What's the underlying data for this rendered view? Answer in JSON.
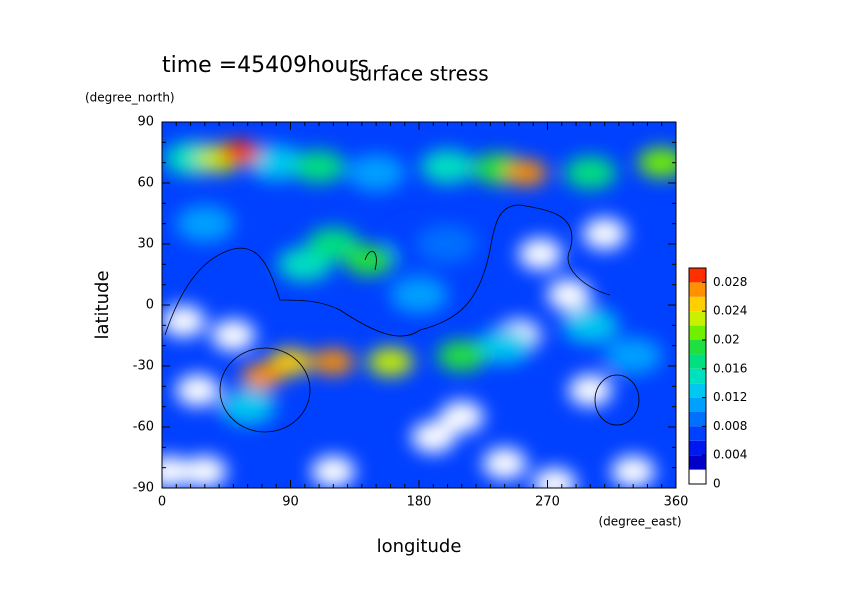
{
  "chart_data": {
    "type": "contour",
    "title": "surface stress",
    "subtitle": "time =45409hours",
    "x_label": "longitude",
    "x_unit": "(degree_east)",
    "y_label": "latitude",
    "y_unit": "(degree_north)",
    "xlim": [
      0,
      360
    ],
    "xticks": [
      0,
      90,
      180,
      270,
      360
    ],
    "ylim": [
      -90,
      90
    ],
    "yticks": [
      -90,
      -60,
      -30,
      0,
      30,
      60,
      90
    ],
    "levels": [
      0,
      0.002,
      0.004,
      0.006,
      0.008,
      0.01,
      0.012,
      0.014,
      0.016,
      0.018,
      0.02,
      0.022,
      0.024,
      0.026,
      0.028,
      0.03
    ],
    "colors": [
      "#ffffff",
      "#0000c8",
      "#0018f0",
      "#0040ff",
      "#0070ff",
      "#00a0ff",
      "#00c8f0",
      "#00e0c0",
      "#00e080",
      "#20e040",
      "#70f000",
      "#c8f000",
      "#ffd000",
      "#ff9000",
      "#ff3000"
    ],
    "colorbar_ticks": [
      0,
      0.004,
      0.008,
      0.012,
      0.016,
      0.02,
      0.024,
      0.028
    ],
    "points": {
      "x": [
        265,
        285,
        310,
        250,
        300,
        15,
        50,
        25,
        210,
        190,
        30,
        120,
        240,
        330,
        5,
        275,
        180,
        200,
        30,
        150,
        330,
        300,
        180,
        240,
        60,
        100,
        20,
        80,
        200,
        120,
        235,
        210,
        300,
        145,
        110,
        160,
        40,
        90,
        350,
        70,
        120,
        255,
        55
      ],
      "y": [
        25,
        5,
        35,
        -15,
        -42,
        -8,
        -15,
        -42,
        -55,
        -65,
        -82,
        -82,
        -78,
        -82,
        -82,
        -88,
        30,
        30,
        40,
        65,
        -25,
        -10,
        5,
        -20,
        -50,
        20,
        72,
        70,
        68,
        30,
        67,
        -25,
        65,
        22,
        68,
        -28,
        72,
        -28,
        70,
        -35,
        -28,
        65,
        75
      ],
      "values": [
        0,
        0,
        0,
        0,
        0,
        0,
        0,
        0,
        0,
        0,
        0,
        0,
        0,
        0,
        0,
        0,
        0.006,
        0.008,
        0.01,
        0.01,
        0.01,
        0.012,
        0.01,
        0.012,
        0.012,
        0.014,
        0.014,
        0.012,
        0.014,
        0.016,
        0.018,
        0.018,
        0.016,
        0.018,
        0.016,
        0.022,
        0.022,
        0.024,
        0.02,
        0.026,
        0.026,
        0.026,
        0.028
      ]
    }
  }
}
